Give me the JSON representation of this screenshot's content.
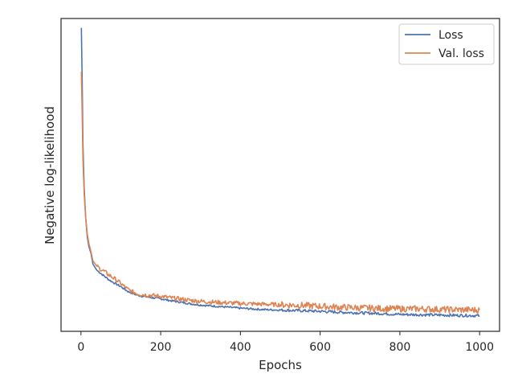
{
  "chart_data": {
    "type": "line",
    "title": "",
    "xlabel": "Epochs",
    "ylabel": "Negative log-likelihood",
    "xlim": [
      -50,
      1050
    ],
    "ylim": [
      0,
      1
    ],
    "x_ticks": [
      0,
      200,
      400,
      600,
      800,
      1000
    ],
    "y_ticks_shown": false,
    "grid": false,
    "legend_position": "top-right",
    "series": [
      {
        "name": "Loss",
        "color": "#4c72b0",
        "x": [
          1,
          3,
          5,
          8,
          12,
          16,
          20,
          25,
          30,
          40,
          50,
          60,
          70,
          80,
          90,
          100,
          110,
          120,
          130,
          140,
          150,
          175,
          200,
          225,
          250,
          275,
          300,
          350,
          400,
          450,
          500,
          550,
          600,
          650,
          700,
          750,
          800,
          850,
          900,
          950,
          1000
        ],
        "y": [
          0.97,
          0.8,
          0.6,
          0.46,
          0.36,
          0.3,
          0.27,
          0.25,
          0.215,
          0.195,
          0.185,
          0.175,
          0.165,
          0.157,
          0.15,
          0.143,
          0.134,
          0.126,
          0.121,
          0.116,
          0.113,
          0.108,
          0.104,
          0.098,
          0.093,
          0.088,
          0.084,
          0.079,
          0.074,
          0.07,
          0.068,
          0.066,
          0.064,
          0.061,
          0.059,
          0.057,
          0.054,
          0.053,
          0.052,
          0.051,
          0.05
        ]
      },
      {
        "name": "Val. loss",
        "color": "#dd8452",
        "x": [
          1,
          3,
          5,
          8,
          12,
          16,
          20,
          25,
          30,
          40,
          50,
          60,
          70,
          80,
          90,
          100,
          110,
          120,
          130,
          140,
          150,
          175,
          200,
          225,
          250,
          275,
          300,
          350,
          400,
          450,
          500,
          550,
          600,
          650,
          700,
          750,
          800,
          850,
          900,
          950,
          1000
        ],
        "y": [
          0.83,
          0.7,
          0.55,
          0.44,
          0.36,
          0.31,
          0.28,
          0.255,
          0.225,
          0.208,
          0.198,
          0.19,
          0.18,
          0.172,
          0.163,
          0.153,
          0.142,
          0.132,
          0.126,
          0.121,
          0.118,
          0.115,
          0.112,
          0.107,
          0.103,
          0.099,
          0.096,
          0.092,
          0.089,
          0.087,
          0.085,
          0.083,
          0.08,
          0.077,
          0.075,
          0.073,
          0.072,
          0.072,
          0.07,
          0.069,
          0.068
        ]
      }
    ]
  }
}
